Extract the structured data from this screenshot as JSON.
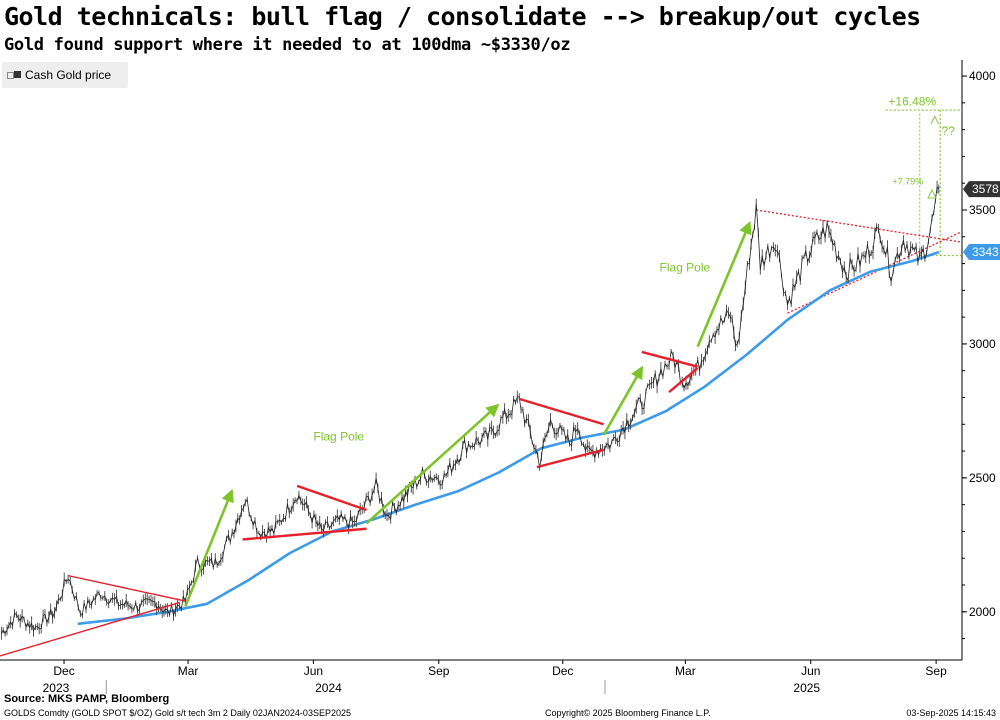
{
  "title": "Gold technicals: bull flag / consolidate --> breakup/out cycles",
  "subtitle": "Gold found support where it needed to at 100dma ~$3330/oz",
  "legend": {
    "label": "Cash Gold price"
  },
  "footer": {
    "source": "Source: MKS PAMP, Bloomberg",
    "info": "GOLDS Comdty (GOLD SPOT $/OZ) Gold s/t tech 3m 2  Daily 02JAN2024-03SEP2025",
    "copyright": "Copyright© 2025 Bloomberg Finance L.P.",
    "timestamp": "03-Sep-2025 14:15:43"
  },
  "colors": {
    "price": "#222222",
    "ma": "#3d9be9",
    "flag": "#e8202a",
    "pole": "#7dc42b",
    "dotted": "#8bc34a"
  },
  "chart_data": {
    "type": "line",
    "y_axis": {
      "ticks": [
        2000,
        2500,
        3000,
        3500,
        4000
      ],
      "range": [
        1820,
        4060
      ],
      "position": "right"
    },
    "x_axis": {
      "ticks": [
        "Dec",
        "Mar",
        "Jun",
        "Sep",
        "Dec",
        "Mar",
        "Jun",
        "Sep"
      ],
      "years": [
        "2023",
        "2024",
        "2025"
      ],
      "range": [
        "2023-10-15",
        "2025-09-20"
      ]
    },
    "series": [
      {
        "name": "Cash Gold price",
        "points": [
          [
            "2023-10-16",
            1920
          ],
          [
            "2023-10-27",
            1985
          ],
          [
            "2023-11-10",
            1940
          ],
          [
            "2023-11-24",
            2000
          ],
          [
            "2023-12-04",
            2135
          ],
          [
            "2023-12-13",
            2000
          ],
          [
            "2023-12-28",
            2070
          ],
          [
            "2024-01-10",
            2030
          ],
          [
            "2024-01-24",
            2020
          ],
          [
            "2024-02-07",
            2035
          ],
          [
            "2024-02-15",
            1995
          ],
          [
            "2024-02-28",
            2040
          ],
          [
            "2024-03-08",
            2180
          ],
          [
            "2024-03-21",
            2180
          ],
          [
            "2024-04-01",
            2280
          ],
          [
            "2024-04-12",
            2420
          ],
          [
            "2024-04-22",
            2300
          ],
          [
            "2024-05-03",
            2300
          ],
          [
            "2024-05-20",
            2440
          ],
          [
            "2024-06-07",
            2300
          ],
          [
            "2024-06-20",
            2340
          ],
          [
            "2024-07-01",
            2330
          ],
          [
            "2024-07-17",
            2470
          ],
          [
            "2024-07-25",
            2360
          ],
          [
            "2024-08-05",
            2420
          ],
          [
            "2024-08-20",
            2510
          ],
          [
            "2024-09-05",
            2500
          ],
          [
            "2024-09-20",
            2620
          ],
          [
            "2024-10-07",
            2650
          ],
          [
            "2024-10-18",
            2720
          ],
          [
            "2024-10-30",
            2790
          ],
          [
            "2024-11-14",
            2560
          ],
          [
            "2024-11-22",
            2710
          ],
          [
            "2024-12-06",
            2630
          ],
          [
            "2024-12-12",
            2700
          ],
          [
            "2024-12-19",
            2590
          ],
          [
            "2025-01-06",
            2630
          ],
          [
            "2025-01-17",
            2710
          ],
          [
            "2025-01-31",
            2800
          ],
          [
            "2025-02-11",
            2900
          ],
          [
            "2025-02-20",
            2950
          ],
          [
            "2025-02-28",
            2860
          ],
          [
            "2025-03-10",
            2910
          ],
          [
            "2025-03-20",
            3040
          ],
          [
            "2025-04-03",
            3110
          ],
          [
            "2025-04-08",
            2980
          ],
          [
            "2025-04-17",
            3330
          ],
          [
            "2025-04-22",
            3500
          ],
          [
            "2025-04-25",
            3300
          ],
          [
            "2025-05-06",
            3390
          ],
          [
            "2025-05-15",
            3150
          ],
          [
            "2025-05-27",
            3300
          ],
          [
            "2025-06-04",
            3380
          ],
          [
            "2025-06-13",
            3430
          ],
          [
            "2025-06-27",
            3270
          ],
          [
            "2025-07-10",
            3320
          ],
          [
            "2025-07-22",
            3430
          ],
          [
            "2025-07-30",
            3270
          ],
          [
            "2025-08-08",
            3390
          ],
          [
            "2025-08-20",
            3310
          ],
          [
            "2025-08-25",
            3370
          ],
          [
            "2025-08-29",
            3450
          ],
          [
            "2025-09-03",
            3578
          ]
        ]
      },
      {
        "name": "100dma",
        "points": [
          [
            "2023-12-11",
            1955
          ],
          [
            "2024-01-15",
            1975
          ],
          [
            "2024-02-15",
            2000
          ],
          [
            "2024-03-15",
            2030
          ],
          [
            "2024-04-15",
            2120
          ],
          [
            "2024-05-15",
            2220
          ],
          [
            "2024-06-15",
            2300
          ],
          [
            "2024-07-15",
            2345
          ],
          [
            "2024-08-15",
            2400
          ],
          [
            "2024-09-15",
            2450
          ],
          [
            "2024-10-15",
            2520
          ],
          [
            "2024-11-15",
            2610
          ],
          [
            "2024-12-15",
            2650
          ],
          [
            "2025-01-15",
            2680
          ],
          [
            "2025-02-15",
            2750
          ],
          [
            "2025-03-15",
            2840
          ],
          [
            "2025-04-15",
            2960
          ],
          [
            "2025-05-15",
            3090
          ],
          [
            "2025-06-15",
            3200
          ],
          [
            "2025-07-15",
            3270
          ],
          [
            "2025-08-15",
            3310
          ],
          [
            "2025-09-03",
            3343
          ]
        ]
      }
    ],
    "price_labels": [
      {
        "value": 3578,
        "label": "3578",
        "color": "#333333"
      },
      {
        "value": 3343,
        "label": "3343",
        "color": "#3d9be9"
      }
    ],
    "flags": [
      {
        "from": [
          "2023-12-04",
          2135
        ],
        "to": [
          "2024-02-28",
          2040
        ]
      },
      {
        "from": [
          "2023-10-15",
          1835
        ],
        "to": [
          "2024-02-24",
          2035
        ]
      },
      {
        "from": [
          "2024-05-20",
          2470
        ],
        "to": [
          "2024-07-10",
          2380
        ]
      },
      {
        "from": [
          "2024-04-10",
          2270
        ],
        "to": [
          "2024-07-10",
          2310
        ]
      },
      {
        "from": [
          "2024-10-30",
          2795
        ],
        "to": [
          "2024-12-31",
          2700
        ]
      },
      {
        "from": [
          "2024-11-12",
          2540
        ],
        "to": [
          "2024-12-31",
          2605
        ]
      },
      {
        "from": [
          "2025-01-28",
          2970
        ],
        "to": [
          "2025-03-10",
          2915
        ]
      },
      {
        "from": [
          "2025-02-17",
          2820
        ],
        "to": [
          "2025-03-10",
          2910
        ]
      }
    ],
    "poles": [
      {
        "from": [
          "2024-02-28",
          2020
        ],
        "to": [
          "2024-04-02",
          2450
        ]
      },
      {
        "from": [
          "2024-07-10",
          2330
        ],
        "to": [
          "2024-10-14",
          2770
        ]
      },
      {
        "from": [
          "2024-12-31",
          2660
        ],
        "to": [
          "2025-01-28",
          2910
        ]
      },
      {
        "from": [
          "2025-03-10",
          2990
        ],
        "to": [
          "2025-04-17",
          3450
        ]
      }
    ],
    "triangle": [
      {
        "from": [
          "2025-04-22",
          3500
        ],
        "to": [
          "2025-09-20",
          3380
        ]
      },
      {
        "from": [
          "2025-05-15",
          3115
        ],
        "to": [
          "2025-09-20",
          3420
        ]
      }
    ],
    "annotations": [
      {
        "text": "Flag Pole",
        "at": [
          "2024-06-01",
          2640
        ],
        "color": "#7dc42b"
      },
      {
        "text": "Flag Pole",
        "at": [
          "2025-02-10",
          3270
        ],
        "color": "#7dc42b"
      },
      {
        "text": "+16.48%",
        "at": [
          "2025-07-28",
          3890
        ],
        "color": "#7dc42b"
      },
      {
        "text": "+7.79%",
        "at": [
          "2025-07-31",
          3595
        ],
        "color": "#7dc42b"
      },
      {
        "text": "??",
        "at": [
          "2025-09-05",
          3780
        ],
        "color": "#7dc42b"
      }
    ],
    "targets": [
      {
        "value": 3873,
        "from": "2025-07-26",
        "to": "2025-09-25"
      },
      {
        "value": 3330,
        "from": "2025-08-20",
        "to": "2025-09-25"
      }
    ]
  }
}
